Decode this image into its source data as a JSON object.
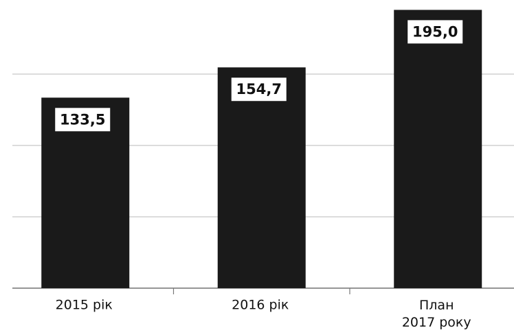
{
  "chart_data": {
    "type": "bar",
    "categories": [
      "2015 рік",
      "2016 рік",
      "План\n2017 року"
    ],
    "values": [
      133.5,
      154.7,
      195.0
    ],
    "value_labels": [
      "133,5",
      "154,7",
      "195,0"
    ],
    "color": "#1a1a1a",
    "ylim": [
      0,
      200
    ],
    "yticks": [
      0,
      50,
      100,
      150
    ],
    "grid": true
  }
}
